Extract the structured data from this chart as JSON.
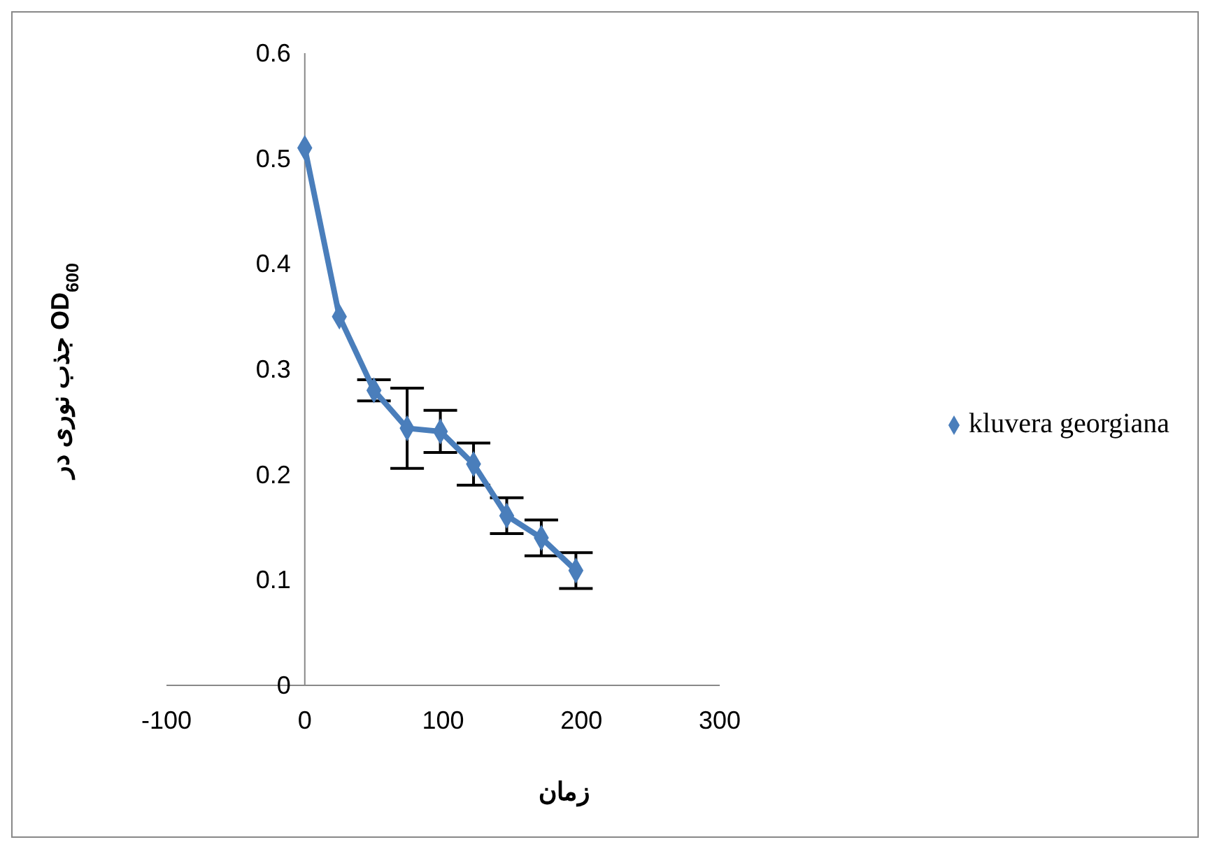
{
  "chart_data": {
    "type": "line",
    "xlabel": "زمان",
    "ylabel": "جذب نوری در OD$_{600}$",
    "x": [
      0,
      25,
      50,
      74,
      98,
      122,
      146,
      171,
      196
    ],
    "series": [
      {
        "name": "kluvera georgiana",
        "color": "#4a7ebb",
        "values": [
          0.51,
          0.35,
          0.28,
          0.244,
          0.241,
          0.21,
          0.161,
          0.14,
          0.109
        ],
        "errors": [
          null,
          null,
          0.01,
          0.038,
          0.02,
          0.02,
          0.017,
          0.017,
          0.017
        ]
      }
    ],
    "xlim": [
      -100,
      300
    ],
    "xticks": [
      -100,
      0,
      100,
      200,
      300
    ],
    "ylim": [
      0,
      0.6
    ],
    "yticks": [
      0,
      0.1,
      0.2,
      0.3,
      0.4,
      0.5,
      0.6
    ],
    "grid": false,
    "legend": "right",
    "marker": "diamond",
    "line_style": "solid"
  }
}
